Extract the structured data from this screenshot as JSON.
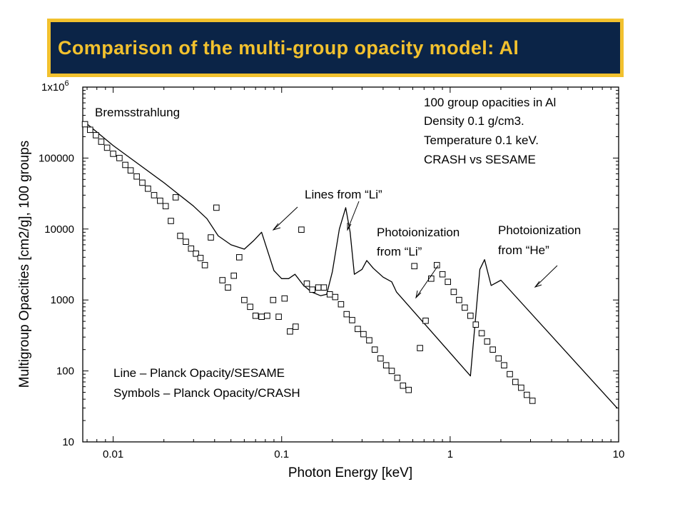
{
  "slide_title": "Comparison of the multi-group opacity model: Al",
  "chart_data": {
    "type": "scatter",
    "xlabel": "Photon Energy [keV]",
    "ylabel": "Multigroup Opacities [cm2/g], 100 groups",
    "xscale": "log",
    "yscale": "log",
    "xlim": [
      0.0066,
      10
    ],
    "ylim": [
      10,
      1000000
    ],
    "x_ticks": [
      {
        "value": 0.01,
        "label": "0.01"
      },
      {
        "value": 0.1,
        "label": "0.1"
      },
      {
        "value": 1,
        "label": "1"
      },
      {
        "value": 10,
        "label": "10"
      }
    ],
    "y_ticks": [
      {
        "value": 10,
        "label": "10"
      },
      {
        "value": 100,
        "label": "100"
      },
      {
        "value": 1000,
        "label": "1000"
      },
      {
        "value": 10000,
        "label": "10000"
      },
      {
        "value": 100000,
        "label": "100000"
      },
      {
        "value": 1000000,
        "label": "1x10",
        "sup": "6"
      }
    ],
    "grid": false,
    "series": [
      {
        "name": "Planck Opacity/SESAME",
        "style": "line",
        "color": "#000000",
        "points": [
          [
            0.0068,
            320000
          ],
          [
            0.01,
            150000
          ],
          [
            0.02,
            45000
          ],
          [
            0.03,
            21000
          ],
          [
            0.036,
            14000
          ],
          [
            0.042,
            8000
          ],
          [
            0.05,
            6000
          ],
          [
            0.06,
            5200
          ],
          [
            0.068,
            6800
          ],
          [
            0.076,
            9000
          ],
          [
            0.09,
            2600
          ],
          [
            0.1,
            2000
          ],
          [
            0.11,
            2000
          ],
          [
            0.12,
            2300
          ],
          [
            0.135,
            1600
          ],
          [
            0.15,
            1300
          ],
          [
            0.17,
            1150
          ],
          [
            0.185,
            1200
          ],
          [
            0.2,
            2500
          ],
          [
            0.22,
            10000
          ],
          [
            0.24,
            20000
          ],
          [
            0.255,
            9000
          ],
          [
            0.27,
            2300
          ],
          [
            0.3,
            2700
          ],
          [
            0.32,
            3600
          ],
          [
            0.35,
            2800
          ],
          [
            0.4,
            2100
          ],
          [
            0.45,
            1800
          ],
          [
            0.48,
            1300
          ],
          [
            1.32,
            85
          ],
          [
            1.5,
            2700
          ],
          [
            1.6,
            3700
          ],
          [
            1.75,
            1600
          ],
          [
            2.0,
            1900
          ],
          [
            9.8,
            30
          ]
        ]
      },
      {
        "name": "Planck Opacity/CRASH",
        "style": "square",
        "color": "#000000",
        "points": [
          [
            0.0068,
            300000
          ],
          [
            0.0073,
            250000
          ],
          [
            0.0079,
            210000
          ],
          [
            0.0085,
            170000
          ],
          [
            0.0092,
            140000
          ],
          [
            0.01,
            115000
          ],
          [
            0.0109,
            100000
          ],
          [
            0.0118,
            80000
          ],
          [
            0.0127,
            67000
          ],
          [
            0.0138,
            55000
          ],
          [
            0.0149,
            45000
          ],
          [
            0.0161,
            37000
          ],
          [
            0.0175,
            30000
          ],
          [
            0.019,
            25000
          ],
          [
            0.0205,
            21000
          ],
          [
            0.022,
            13000
          ],
          [
            0.0235,
            28000
          ],
          [
            0.025,
            8000
          ],
          [
            0.027,
            6600
          ],
          [
            0.029,
            5300
          ],
          [
            0.031,
            4500
          ],
          [
            0.033,
            3900
          ],
          [
            0.035,
            3100
          ],
          [
            0.038,
            7600
          ],
          [
            0.041,
            20000
          ],
          [
            0.0445,
            1900
          ],
          [
            0.048,
            1500
          ],
          [
            0.052,
            2200
          ],
          [
            0.056,
            4000
          ],
          [
            0.06,
            1000
          ],
          [
            0.065,
            800
          ],
          [
            0.07,
            600
          ],
          [
            0.076,
            580
          ],
          [
            0.082,
            600
          ],
          [
            0.089,
            1000
          ],
          [
            0.096,
            580
          ],
          [
            0.104,
            1050
          ],
          [
            0.112,
            360
          ],
          [
            0.121,
            420
          ],
          [
            0.131,
            9800
          ],
          [
            0.141,
            1700
          ],
          [
            0.152,
            1400
          ],
          [
            0.165,
            1500
          ],
          [
            0.178,
            1500
          ],
          [
            0.193,
            1200
          ],
          [
            0.208,
            1100
          ],
          [
            0.225,
            870
          ],
          [
            0.243,
            630
          ],
          [
            0.262,
            520
          ],
          [
            0.283,
            390
          ],
          [
            0.306,
            330
          ],
          [
            0.331,
            270
          ],
          [
            0.357,
            200
          ],
          [
            0.386,
            150
          ],
          [
            0.417,
            120
          ],
          [
            0.45,
            100
          ],
          [
            0.486,
            80
          ],
          [
            0.525,
            62
          ],
          [
            0.567,
            54
          ],
          [
            0.613,
            3000
          ],
          [
            0.662,
            210
          ],
          [
            0.715,
            510
          ],
          [
            0.772,
            2000
          ],
          [
            0.834,
            3100
          ],
          [
            0.9,
            2300
          ],
          [
            0.97,
            1800
          ],
          [
            1.05,
            1300
          ],
          [
            1.13,
            1000
          ],
          [
            1.22,
            780
          ],
          [
            1.32,
            600
          ],
          [
            1.42,
            450
          ],
          [
            1.54,
            340
          ],
          [
            1.66,
            260
          ],
          [
            1.79,
            200
          ],
          [
            1.94,
            150
          ],
          [
            2.09,
            120
          ],
          [
            2.26,
            90
          ],
          [
            2.44,
            70
          ],
          [
            2.64,
            58
          ],
          [
            2.85,
            46
          ],
          [
            3.08,
            38
          ]
        ]
      }
    ],
    "annotations": [
      {
        "text": "Bremsstrahlung"
      },
      {
        "lines": [
          "100 group opacities in Al",
          "Density 0.1 g/cm3.",
          "Temperature 0.1 keV.",
          "CRASH vs SESAME"
        ]
      },
      {
        "text": "Lines from “Li”"
      },
      {
        "lines": [
          "Photoionization",
          "from “Li”"
        ]
      },
      {
        "lines": [
          "Photoionization",
          "from “He”"
        ]
      },
      {
        "lines": [
          "Line – Planck Opacity/SESAME",
          "Symbols – Planck Opacity/CRASH"
        ]
      }
    ]
  }
}
